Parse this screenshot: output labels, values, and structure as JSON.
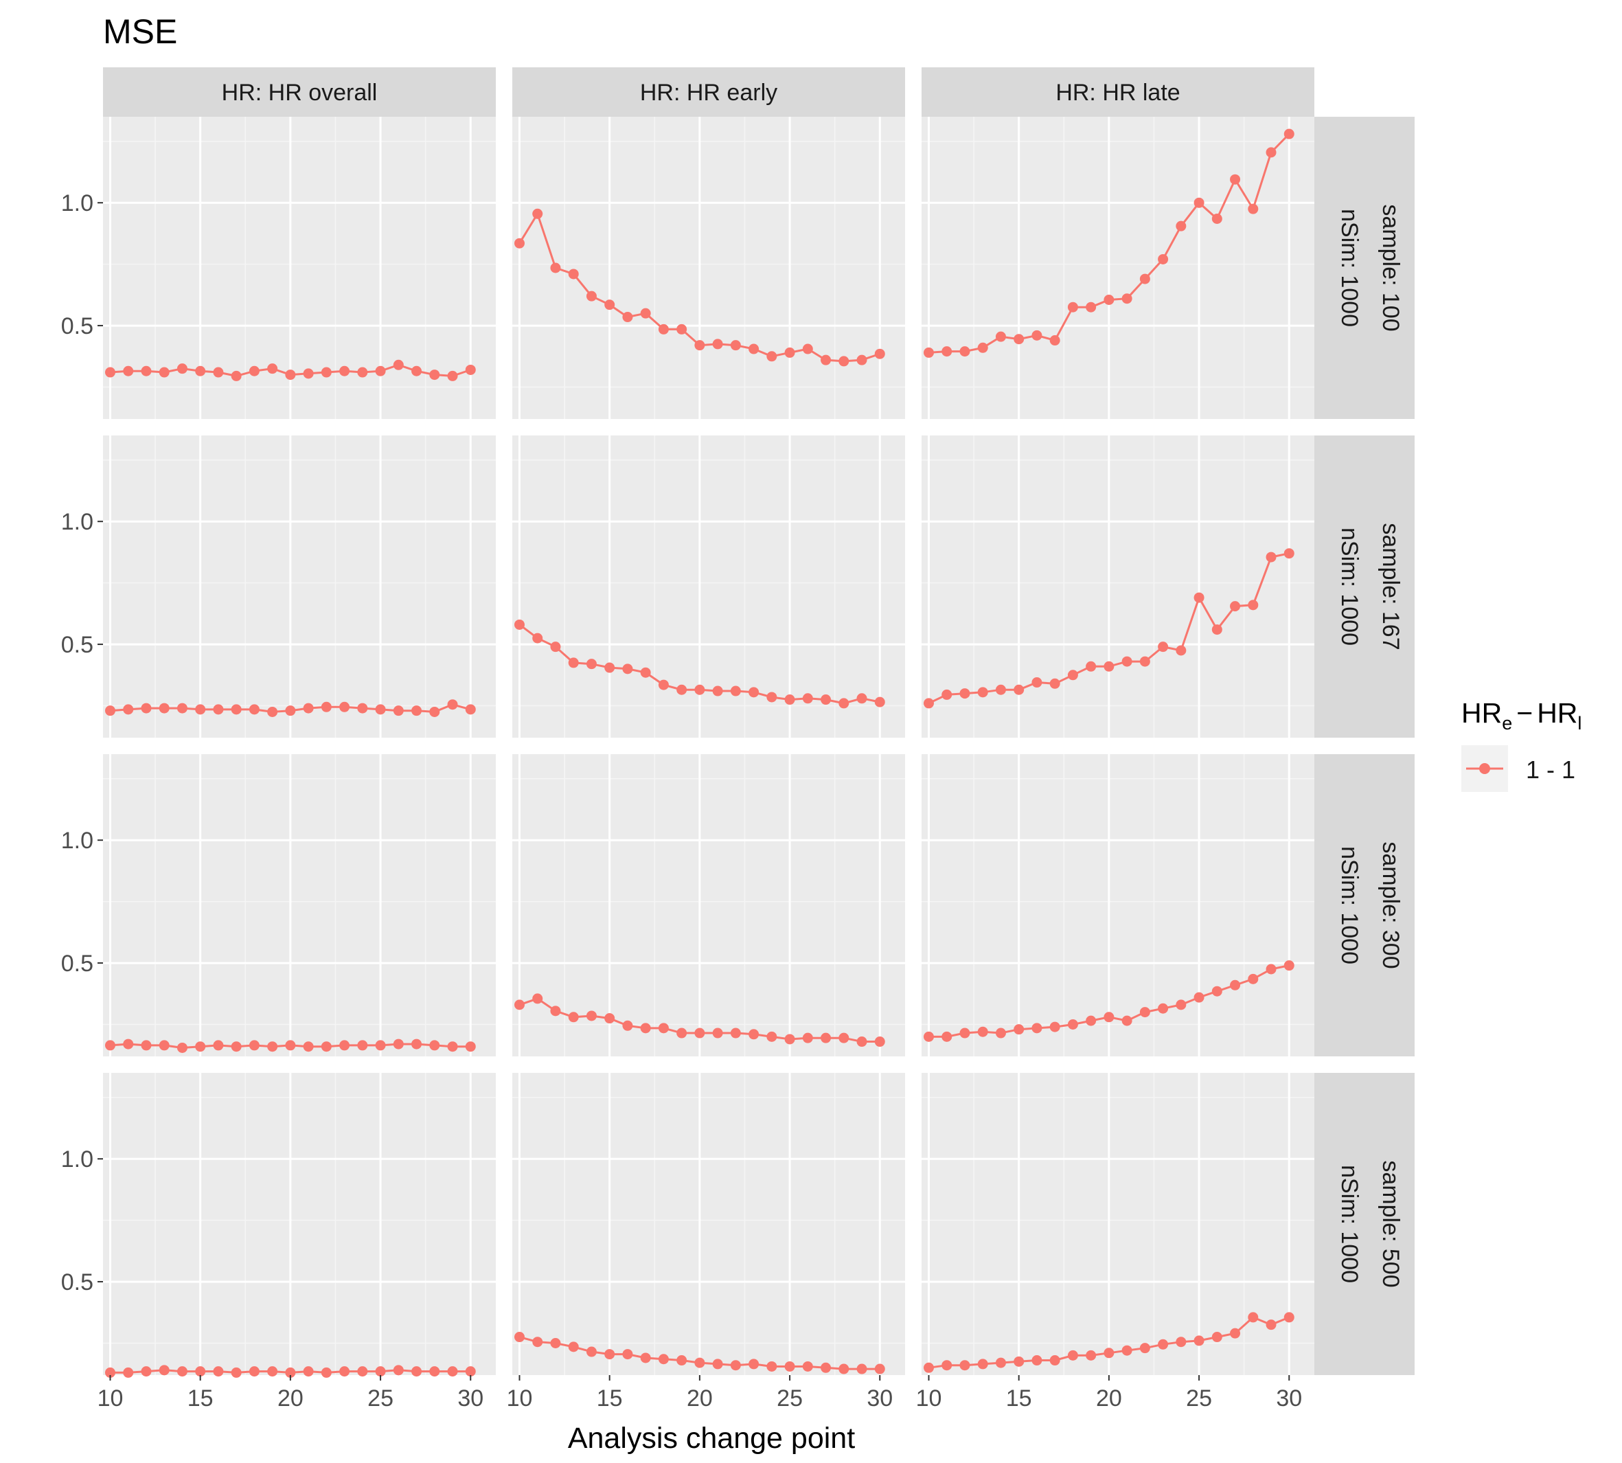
{
  "title": "MSE",
  "xlabel": "Analysis change point",
  "legend": {
    "title_base": "HR",
    "title_sub_early": "e",
    "title_minus": "−",
    "title_sub_late": "l",
    "items": [
      {
        "label": "1 - 1"
      }
    ]
  },
  "colors": {
    "series": "#F8766D",
    "panel_bg": "#EBEBEB",
    "strip_bg": "#D9D9D9",
    "grid": "#FFFFFF",
    "text": "#1A1A1A",
    "axis_text": "#4D4D4D"
  },
  "chart_data": {
    "type": "line",
    "facet_columns": [
      "HR: HR overall",
      "HR: HR early",
      "HR: HR late"
    ],
    "facet_rows": [
      {
        "sample": "sample: 100",
        "nsim": "nSim: 1000"
      },
      {
        "sample": "sample: 167",
        "nsim": "nSim: 1000"
      },
      {
        "sample": "sample: 300",
        "nsim": "nSim: 1000"
      },
      {
        "sample": "sample: 500",
        "nsim": "nSim: 1000"
      }
    ],
    "x": [
      10,
      11,
      12,
      13,
      14,
      15,
      16,
      17,
      18,
      19,
      20,
      21,
      22,
      23,
      24,
      25,
      26,
      27,
      28,
      29,
      30
    ],
    "xlim": [
      9.6,
      31.4
    ],
    "ylim": [
      0.12,
      1.35
    ],
    "x_ticks": [
      10,
      15,
      20,
      25,
      30
    ],
    "x_tick_labels": [
      "10",
      "15",
      "20",
      "25",
      "30"
    ],
    "y_ticks": [
      0.5,
      1.0
    ],
    "y_tick_labels": [
      "0.5",
      "1.0"
    ],
    "series_name": "1 - 1",
    "panels": [
      [
        [
          0.31,
          0.315,
          0.315,
          0.31,
          0.325,
          0.315,
          0.31,
          0.295,
          0.315,
          0.325,
          0.3,
          0.305,
          0.31,
          0.315,
          0.31,
          0.315,
          0.34,
          0.315,
          0.3,
          0.295,
          0.32
        ],
        [
          0.835,
          0.955,
          0.735,
          0.71,
          0.62,
          0.585,
          0.535,
          0.55,
          0.485,
          0.485,
          0.42,
          0.425,
          0.42,
          0.405,
          0.375,
          0.39,
          0.405,
          0.36,
          0.355,
          0.36,
          0.385
        ],
        [
          0.39,
          0.395,
          0.395,
          0.41,
          0.455,
          0.445,
          0.46,
          0.44,
          0.575,
          0.575,
          0.605,
          0.61,
          0.69,
          0.77,
          0.905,
          1.0,
          0.935,
          1.095,
          0.975,
          1.205,
          1.28
        ]
      ],
      [
        [
          0.23,
          0.235,
          0.24,
          0.24,
          0.24,
          0.235,
          0.235,
          0.235,
          0.235,
          0.225,
          0.23,
          0.24,
          0.245,
          0.245,
          0.24,
          0.235,
          0.23,
          0.23,
          0.225,
          0.255,
          0.235
        ],
        [
          0.58,
          0.525,
          0.49,
          0.425,
          0.42,
          0.405,
          0.4,
          0.385,
          0.335,
          0.315,
          0.315,
          0.31,
          0.31,
          0.305,
          0.285,
          0.275,
          0.28,
          0.275,
          0.26,
          0.28,
          0.265
        ],
        [
          0.26,
          0.295,
          0.3,
          0.305,
          0.315,
          0.315,
          0.345,
          0.34,
          0.375,
          0.41,
          0.41,
          0.43,
          0.43,
          0.49,
          0.475,
          0.69,
          0.56,
          0.655,
          0.66,
          0.855,
          0.87
        ]
      ],
      [
        [
          0.165,
          0.17,
          0.165,
          0.165,
          0.155,
          0.16,
          0.165,
          0.16,
          0.165,
          0.16,
          0.165,
          0.16,
          0.16,
          0.165,
          0.165,
          0.165,
          0.17,
          0.17,
          0.165,
          0.16,
          0.16
        ],
        [
          0.33,
          0.355,
          0.305,
          0.28,
          0.285,
          0.275,
          0.245,
          0.235,
          0.235,
          0.215,
          0.215,
          0.215,
          0.215,
          0.21,
          0.2,
          0.19,
          0.195,
          0.195,
          0.195,
          0.18,
          0.18
        ],
        [
          0.2,
          0.2,
          0.215,
          0.22,
          0.215,
          0.23,
          0.235,
          0.24,
          0.25,
          0.265,
          0.28,
          0.265,
          0.3,
          0.315,
          0.33,
          0.36,
          0.385,
          0.41,
          0.435,
          0.475,
          0.49
        ]
      ],
      [
        [
          0.13,
          0.13,
          0.135,
          0.14,
          0.135,
          0.135,
          0.135,
          0.13,
          0.135,
          0.135,
          0.13,
          0.135,
          0.13,
          0.135,
          0.135,
          0.135,
          0.14,
          0.135,
          0.135,
          0.135,
          0.135
        ],
        [
          0.275,
          0.255,
          0.25,
          0.235,
          0.215,
          0.205,
          0.205,
          0.19,
          0.185,
          0.18,
          0.17,
          0.165,
          0.16,
          0.165,
          0.155,
          0.155,
          0.155,
          0.15,
          0.145,
          0.145,
          0.145
        ],
        [
          0.15,
          0.16,
          0.16,
          0.165,
          0.17,
          0.175,
          0.18,
          0.18,
          0.2,
          0.2,
          0.21,
          0.22,
          0.23,
          0.245,
          0.255,
          0.26,
          0.275,
          0.29,
          0.355,
          0.325,
          0.355
        ]
      ]
    ]
  }
}
